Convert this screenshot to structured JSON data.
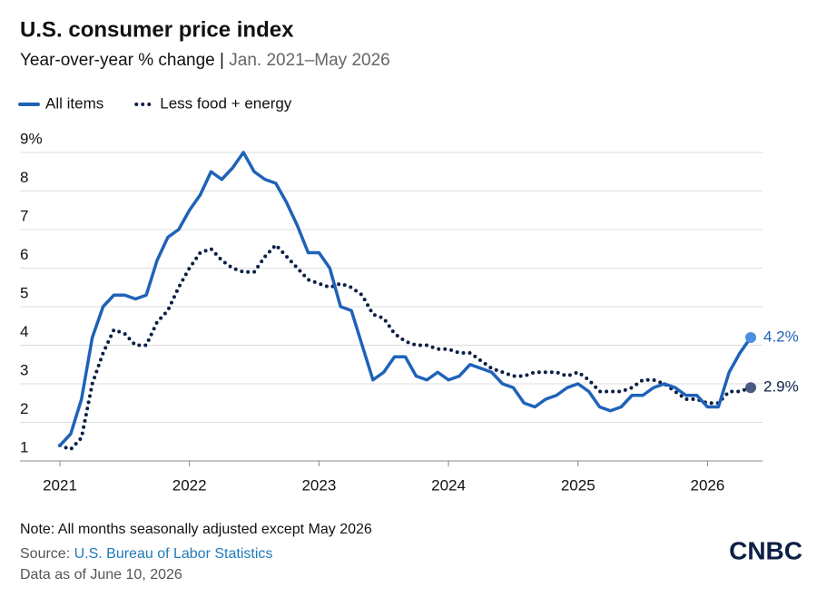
{
  "chart_data": {
    "type": "line",
    "title": "U.S. consumer price index",
    "subtitle": "Year-over-year % change |",
    "subtitle_range": "Jan. 2021–May 2026",
    "categories": [
      "2021",
      null,
      null,
      null,
      null,
      null,
      null,
      null,
      null,
      null,
      null,
      null,
      "2022",
      null,
      null,
      null,
      null,
      null,
      null,
      null,
      null,
      null,
      null,
      null,
      "2023",
      null,
      null,
      null,
      null,
      null,
      null,
      null,
      null,
      null,
      null,
      null,
      "2024",
      null,
      null,
      null,
      null,
      null,
      null,
      null,
      null,
      null,
      null,
      null,
      "2025",
      null,
      null,
      null,
      null,
      null,
      null,
      null,
      null,
      null,
      null,
      null,
      "2026",
      null,
      null,
      null,
      null
    ],
    "series": [
      {
        "name": "All items",
        "color": "#1f62b8",
        "style": "solid",
        "end_label": "4.2%",
        "values": [
          1.4,
          1.7,
          2.6,
          4.2,
          5.0,
          5.3,
          5.3,
          5.2,
          5.3,
          6.2,
          6.8,
          7.0,
          7.5,
          7.9,
          8.5,
          8.3,
          8.6,
          9.0,
          8.5,
          8.3,
          8.2,
          7.7,
          7.1,
          6.4,
          6.4,
          6.0,
          5.0,
          4.9,
          4.0,
          3.1,
          3.3,
          3.7,
          3.7,
          3.2,
          3.1,
          3.3,
          3.1,
          3.2,
          3.5,
          3.4,
          3.3,
          3.0,
          2.9,
          2.5,
          2.4,
          2.6,
          2.7,
          2.9,
          3.0,
          2.8,
          2.4,
          2.3,
          2.4,
          2.7,
          2.7,
          2.9,
          3.0,
          2.9,
          2.7,
          2.7,
          2.4,
          2.4,
          3.3,
          3.8,
          4.2
        ]
      },
      {
        "name": "Less food + energy",
        "color": "#0c1f45",
        "style": "dotted",
        "end_label": "2.9%",
        "values": [
          1.4,
          1.3,
          1.6,
          3.0,
          3.8,
          4.4,
          4.3,
          4.0,
          4.0,
          4.6,
          4.9,
          5.5,
          6.0,
          6.4,
          6.5,
          6.2,
          6.0,
          5.9,
          5.9,
          6.3,
          6.6,
          6.3,
          6.0,
          5.7,
          5.6,
          5.5,
          5.6,
          5.5,
          5.3,
          4.8,
          4.7,
          4.3,
          4.1,
          4.0,
          4.0,
          3.9,
          3.9,
          3.8,
          3.8,
          3.6,
          3.4,
          3.3,
          3.2,
          3.2,
          3.3,
          3.3,
          3.3,
          3.2,
          3.3,
          3.1,
          2.8,
          2.8,
          2.8,
          2.9,
          3.1,
          3.1,
          3.0,
          2.8,
          2.6,
          2.6,
          2.5,
          2.5,
          2.8,
          2.8,
          2.9
        ]
      }
    ],
    "ylim": [
      1,
      9
    ],
    "yticks": [
      1,
      2,
      3,
      4,
      5,
      6,
      7,
      8,
      {
        "value": 9,
        "label": "9%"
      }
    ],
    "grid": true,
    "legend": "top-left",
    "note": "Note: All months seasonally adjusted except May 2026",
    "source_label": "Source:",
    "source": "U.S. Bureau of Labor Statistics",
    "date_note": "Data as of June 10, 2026",
    "brand": "CNBC"
  }
}
